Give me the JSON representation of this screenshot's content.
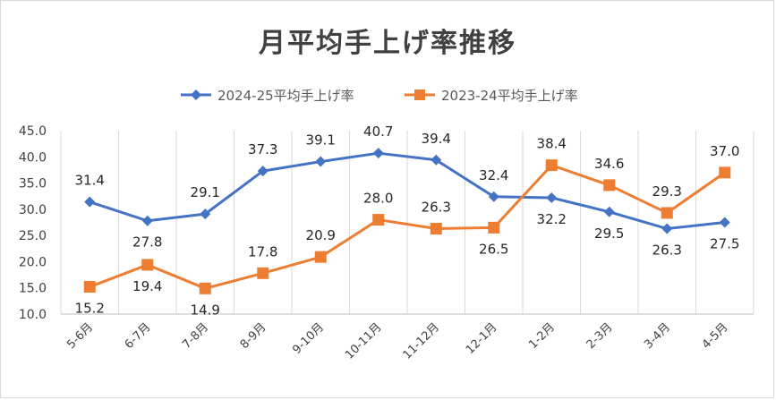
{
  "chart_data": {
    "type": "line",
    "title": "月平均手上げ率推移",
    "categories": [
      "5-6月",
      "6-7月",
      "7-8月",
      "8-9月",
      "9-10月",
      "10-11月",
      "11-12月",
      "12-1月",
      "1-2月",
      "2-3月",
      "3-4月",
      "4-5月"
    ],
    "series": [
      {
        "name": "2024-25平均手上げ率",
        "color": "#4472c4",
        "marker": "diamond",
        "values": [
          31.4,
          27.8,
          29.1,
          37.3,
          39.1,
          40.7,
          39.4,
          32.4,
          32.2,
          29.5,
          26.3,
          27.5
        ],
        "labels": [
          "31.4",
          "27.8",
          "29.1",
          "37.3",
          "39.1",
          "40.7",
          "39.4",
          "32.4",
          "32.2",
          "29.5",
          "26.3",
          "27.5"
        ]
      },
      {
        "name": "2023-24平均手上げ率",
        "color": "#ed7d31",
        "marker": "square",
        "values": [
          15.2,
          19.4,
          14.9,
          17.8,
          20.9,
          28.0,
          26.3,
          26.5,
          38.4,
          34.6,
          29.3,
          37.0
        ],
        "labels": [
          "15.2",
          "19.4",
          "14.9",
          "17.8",
          "20.9",
          "28.0",
          "26.3",
          "26.5",
          "38.4",
          "34.6",
          "29.3",
          "37.0"
        ]
      }
    ],
    "ylim": [
      10.0,
      45.0
    ],
    "yticks": [
      "10.0",
      "15.0",
      "20.0",
      "25.0",
      "30.0",
      "35.0",
      "40.0",
      "45.0"
    ],
    "xlabel": "",
    "ylabel": "",
    "grid": true,
    "legend": "top"
  }
}
